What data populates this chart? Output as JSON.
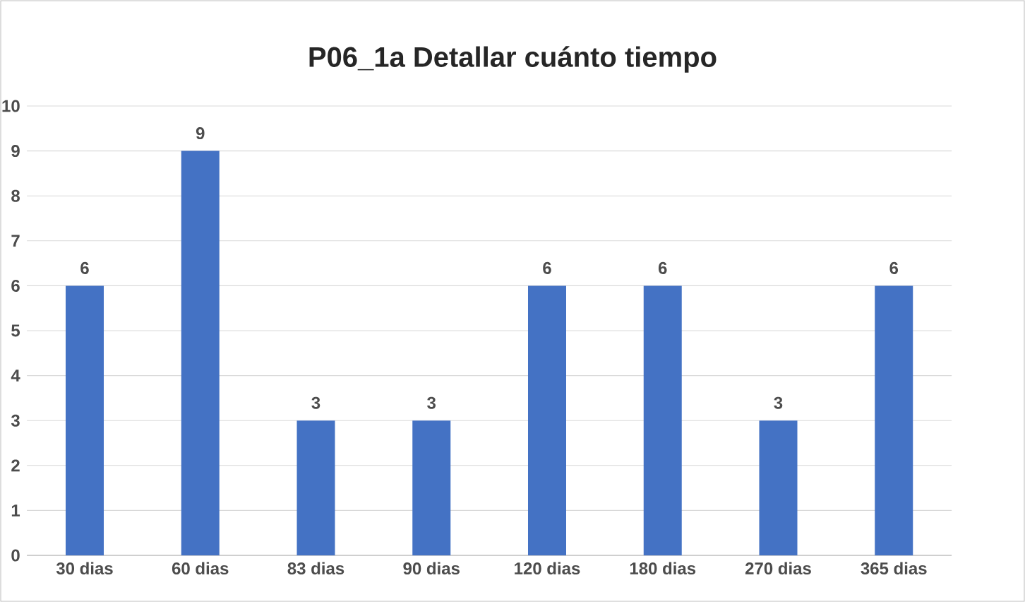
{
  "chart_data": {
    "type": "bar",
    "title": "P06_1a Detallar cuánto tiempo",
    "categories": [
      "30 dias",
      "60 dias",
      "83 dias",
      "90 dias",
      "120 dias",
      "180 dias",
      "270 dias",
      "365 dias"
    ],
    "values": [
      6,
      9,
      3,
      3,
      6,
      6,
      3,
      6
    ],
    "color": "#4472c4",
    "ylim": [
      0,
      10
    ],
    "yticks": [
      0,
      1,
      2,
      3,
      4,
      5,
      6,
      7,
      8,
      9,
      10
    ],
    "grid": "y",
    "data_labels": true
  }
}
